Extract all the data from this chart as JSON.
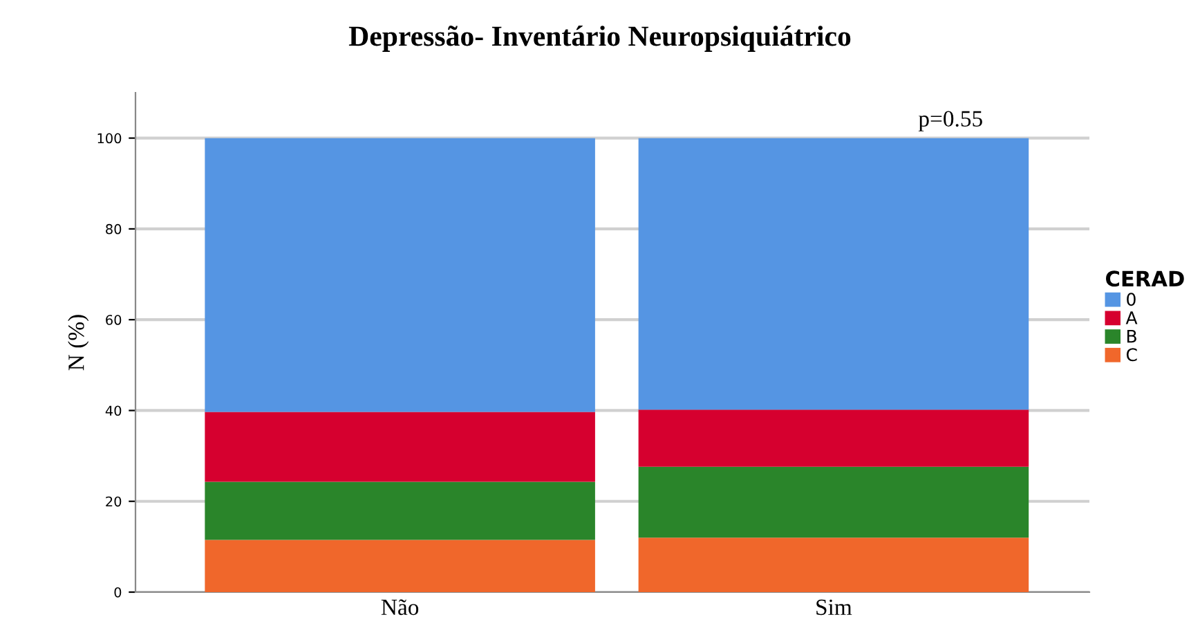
{
  "chart_data": {
    "type": "bar",
    "title": "Depressão- Inventário Neuropsiquiátrico",
    "ylabel": "N (%)",
    "legend_title": "CERAD",
    "categories": [
      "Não",
      "Sim"
    ],
    "stacked": true,
    "series": [
      {
        "name": "C",
        "color": "#f0672b",
        "values": [
          11.5,
          12
        ]
      },
      {
        "name": "B",
        "color": "#2a852a",
        "values": [
          12.8,
          15.6
        ]
      },
      {
        "name": "A",
        "color": "#d6002f",
        "values": [
          15.4,
          12.6
        ]
      },
      {
        "name": "0",
        "color": "#5595e3",
        "values": [
          60.3,
          59.8
        ]
      }
    ],
    "ylim": [
      0,
      110
    ],
    "yticks": [
      0,
      20,
      40,
      60,
      80,
      100
    ],
    "grid": "y",
    "legend": "right",
    "annotations": [
      "p=0.55"
    ]
  }
}
